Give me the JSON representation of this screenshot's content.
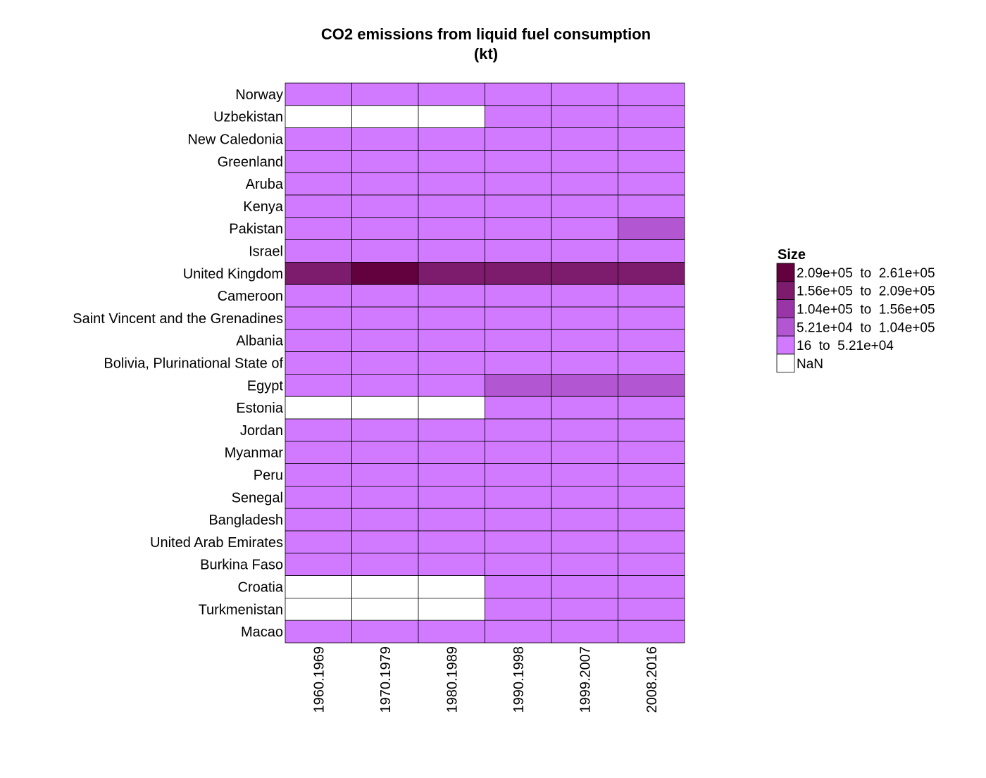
{
  "chart_data": {
    "type": "heatmap",
    "title_lines": [
      "CO2 emissions from liquid fuel consumption",
      "(kt)"
    ],
    "x_categories": [
      "1960.1969",
      "1970.1979",
      "1980.1989",
      "1990.1998",
      "1999.2007",
      "2008.2016"
    ],
    "y_categories": [
      "Norway",
      "Uzbekistan",
      "New Caledonia",
      "Greenland",
      "Aruba",
      "Kenya",
      "Pakistan",
      "Israel",
      "United Kingdom",
      "Cameroon",
      "Saint Vincent and the Grenadines",
      "Albania",
      "Bolivia, Plurinational State of",
      "Egypt",
      "Estonia",
      "Jordan",
      "Myanmar",
      "Peru",
      "Senegal",
      "Bangladesh",
      "United Arab Emirates",
      "Burkina Faso",
      "Croatia",
      "Turkmenistan",
      "Macao"
    ],
    "value_bins": [
      [
        0,
        0,
        0,
        0,
        0,
        0
      ],
      [
        null,
        null,
        null,
        0,
        0,
        0
      ],
      [
        0,
        0,
        0,
        0,
        0,
        0
      ],
      [
        0,
        0,
        0,
        0,
        0,
        0
      ],
      [
        0,
        0,
        0,
        0,
        0,
        0
      ],
      [
        0,
        0,
        0,
        0,
        0,
        0
      ],
      [
        0,
        0,
        0,
        0,
        0,
        1
      ],
      [
        0,
        0,
        0,
        0,
        0,
        0
      ],
      [
        3,
        4,
        3,
        3,
        3,
        3
      ],
      [
        0,
        0,
        0,
        0,
        0,
        0
      ],
      [
        0,
        0,
        0,
        0,
        0,
        0
      ],
      [
        0,
        0,
        0,
        0,
        0,
        0
      ],
      [
        0,
        0,
        0,
        0,
        0,
        0
      ],
      [
        0,
        0,
        0,
        1,
        1,
        1
      ],
      [
        null,
        null,
        null,
        0,
        0,
        0
      ],
      [
        0,
        0,
        0,
        0,
        0,
        0
      ],
      [
        0,
        0,
        0,
        0,
        0,
        0
      ],
      [
        0,
        0,
        0,
        0,
        0,
        0
      ],
      [
        0,
        0,
        0,
        0,
        0,
        0
      ],
      [
        0,
        0,
        0,
        0,
        0,
        0
      ],
      [
        0,
        0,
        0,
        0,
        0,
        0
      ],
      [
        0,
        0,
        0,
        0,
        0,
        0
      ],
      [
        null,
        null,
        null,
        0,
        0,
        0
      ],
      [
        null,
        null,
        null,
        0,
        0,
        0
      ],
      [
        0,
        0,
        0,
        0,
        0,
        0
      ]
    ],
    "legend": {
      "title": "Size",
      "bins": [
        {
          "label": "16  to  5.21e+04",
          "color": "#d17aff"
        },
        {
          "label": "5.21e+04  to  1.04e+05",
          "color": "#b356d1"
        },
        {
          "label": "1.04e+05  to  1.56e+05",
          "color": "#9a35a8"
        },
        {
          "label": "1.56e+05  to  2.09e+05",
          "color": "#7d1c6c"
        },
        {
          "label": "2.09e+05  to  2.61e+05",
          "color": "#63003e"
        }
      ],
      "nan": {
        "label": "NaN",
        "color": "#ffffff"
      }
    },
    "grid": true,
    "legend_position": "right"
  }
}
